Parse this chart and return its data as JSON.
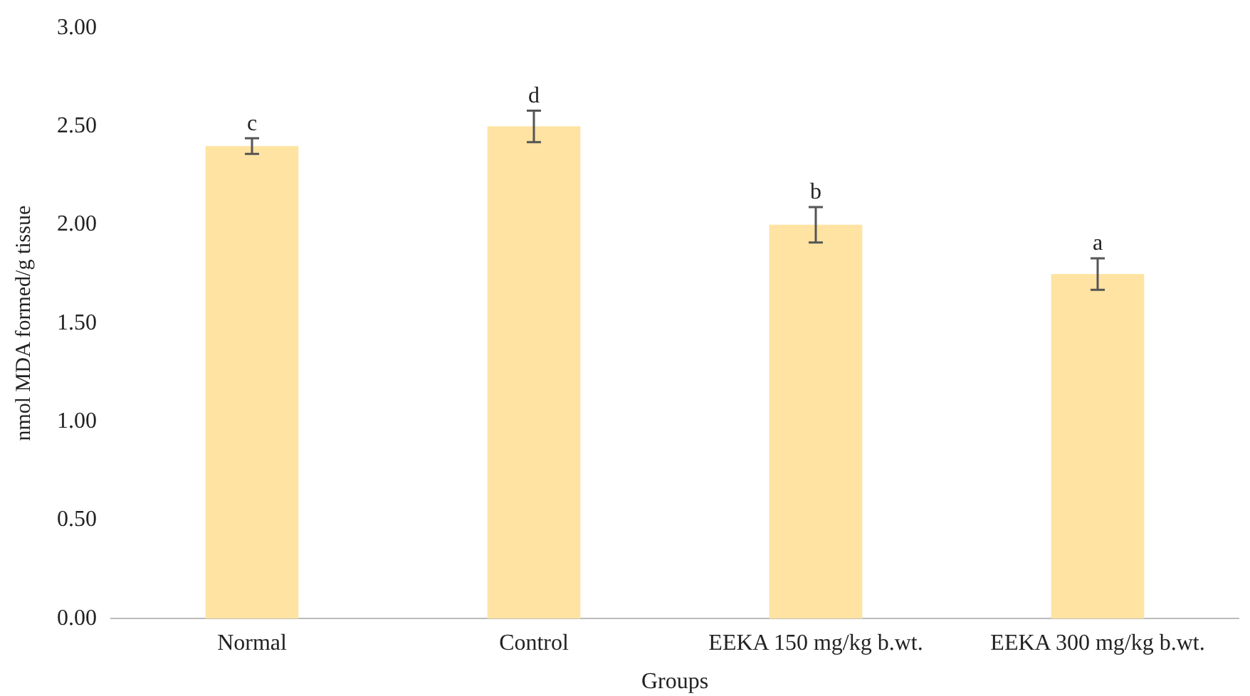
{
  "chart_data": {
    "type": "bar",
    "xlabel": "Groups",
    "ylabel": "nmol MDA formed/g tissue",
    "categories": [
      "Normal",
      "Control",
      "EEKA 150 mg/kg b.wt.",
      "EEKA 300 mg/kg b.wt."
    ],
    "values": [
      2.4,
      2.5,
      2.0,
      1.75
    ],
    "errors": [
      0.04,
      0.08,
      0.09,
      0.08
    ],
    "color": "#fee3a2",
    "ylim": [
      0,
      3
    ],
    "yticks": [
      {
        "value": 0,
        "label": "0.00"
      },
      {
        "value": 0.5,
        "label": "0.50"
      },
      {
        "value": 1,
        "label": "1.00"
      },
      {
        "value": 1.5,
        "label": "1.50"
      },
      {
        "value": 2,
        "label": "2.00"
      },
      {
        "value": 2.5,
        "label": "2.50"
      },
      {
        "value": 3,
        "label": "3.00"
      }
    ],
    "grid": false,
    "annotations": [
      {
        "text": "c",
        "x": "Normal",
        "y": 2.44
      },
      {
        "text": "d",
        "x": "Control",
        "y": 2.58
      },
      {
        "text": "b",
        "x": "EEKA 150 mg/kg b.wt.",
        "y": 2.09
      },
      {
        "text": "a",
        "x": "EEKA 300 mg/kg b.wt.",
        "y": 1.83
      }
    ]
  }
}
